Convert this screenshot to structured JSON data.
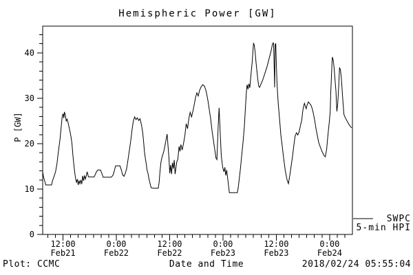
{
  "title": "Hemispheric Power [GW]",
  "y_axis_label": "P [GW]",
  "legend": {
    "line1": "SWPC",
    "line2": "5-min HPI"
  },
  "footer": {
    "left": "Plot: CCMC",
    "center": "Date and Time",
    "right": "2018/02/24 05:55:04"
  },
  "colors": {
    "background": "#ffffff",
    "foreground": "#000000",
    "line": "#000000"
  },
  "chart_data": {
    "type": "line",
    "title": "Hemispheric Power [GW]",
    "xlabel": "Date and Time",
    "ylabel": "P [GW]",
    "ylim": [
      0,
      45.9
    ],
    "y_major_ticks": [
      0,
      10,
      20,
      30,
      40
    ],
    "y_minor_step": 2,
    "grid": false,
    "x_hours_total": 69.7,
    "x_minor_step_hours": 1.7143,
    "x_major_ticks": [
      {
        "t": 4.57,
        "time": "12:00",
        "date": "Feb21"
      },
      {
        "t": 16.57,
        "time": "0:00",
        "date": "Feb22"
      },
      {
        "t": 28.57,
        "time": "12:00",
        "date": "Feb22"
      },
      {
        "t": 40.57,
        "time": "0:00",
        "date": "Feb23"
      },
      {
        "t": 52.57,
        "time": "12:00",
        "date": "Feb23"
      },
      {
        "t": 64.57,
        "time": "0:00",
        "date": "Feb24"
      }
    ],
    "legend_position": "right-outside-bottom",
    "series": [
      {
        "name": "SWPC 5-min HPI",
        "color": "#000000",
        "points": [
          [
            0,
            13.8
          ],
          [
            0.2,
            12.6
          ],
          [
            0.5,
            11.6
          ],
          [
            0.7,
            10.9
          ],
          [
            2.0,
            10.9
          ],
          [
            2.2,
            11.8
          ],
          [
            2.5,
            12.6
          ],
          [
            2.9,
            13.8
          ],
          [
            3.2,
            15.5
          ],
          [
            3.5,
            18.0
          ],
          [
            3.9,
            21.0
          ],
          [
            4.2,
            24.0
          ],
          [
            4.4,
            26.0
          ],
          [
            4.6,
            26.6
          ],
          [
            4.75,
            25.6
          ],
          [
            4.9,
            27.0
          ],
          [
            5.1,
            26.3
          ],
          [
            5.3,
            25.0
          ],
          [
            5.5,
            25.4
          ],
          [
            5.8,
            24.3
          ],
          [
            6.1,
            22.9
          ],
          [
            6.4,
            21.4
          ],
          [
            6.6,
            19.9
          ],
          [
            6.8,
            17.5
          ],
          [
            7.0,
            15.5
          ],
          [
            7.2,
            13.8
          ],
          [
            7.4,
            12.3
          ],
          [
            7.6,
            11.5
          ],
          [
            7.8,
            12.2
          ],
          [
            8.0,
            10.9
          ],
          [
            8.2,
            11.8
          ],
          [
            8.4,
            11.2
          ],
          [
            8.6,
            12.0
          ],
          [
            8.8,
            11.1
          ],
          [
            9.0,
            12.9
          ],
          [
            9.2,
            11.8
          ],
          [
            9.4,
            13.0
          ],
          [
            9.6,
            12.2
          ],
          [
            9.8,
            12.9
          ],
          [
            10.0,
            13.8
          ],
          [
            10.3,
            12.7
          ],
          [
            11.6,
            12.7
          ],
          [
            12.1,
            13.8
          ],
          [
            12.4,
            14.2
          ],
          [
            13.0,
            14.2
          ],
          [
            13.3,
            13.5
          ],
          [
            13.6,
            12.6
          ],
          [
            15.4,
            12.6
          ],
          [
            15.8,
            13.0
          ],
          [
            16.1,
            13.9
          ],
          [
            16.4,
            15.1
          ],
          [
            17.4,
            15.1
          ],
          [
            17.7,
            14.2
          ],
          [
            18.0,
            13.1
          ],
          [
            18.3,
            12.8
          ],
          [
            18.6,
            13.5
          ],
          [
            18.9,
            14.5
          ],
          [
            19.2,
            16.5
          ],
          [
            19.5,
            18.5
          ],
          [
            19.8,
            20.5
          ],
          [
            20.1,
            23.0
          ],
          [
            20.4,
            25.0
          ],
          [
            20.7,
            25.9
          ],
          [
            21.0,
            25.3
          ],
          [
            21.3,
            25.7
          ],
          [
            21.6,
            25.1
          ],
          [
            21.9,
            25.5
          ],
          [
            22.2,
            24.3
          ],
          [
            22.5,
            22.5
          ],
          [
            22.7,
            20.5
          ],
          [
            22.9,
            18.3
          ],
          [
            23.1,
            16.8
          ],
          [
            23.3,
            15.6
          ],
          [
            23.5,
            14.1
          ],
          [
            23.7,
            13.5
          ],
          [
            23.9,
            12.3
          ],
          [
            24.1,
            11.5
          ],
          [
            24.4,
            10.3
          ],
          [
            24.8,
            10.2
          ],
          [
            26.0,
            10.2
          ],
          [
            26.2,
            11.5
          ],
          [
            26.4,
            13.8
          ],
          [
            26.6,
            15.8
          ],
          [
            26.8,
            16.8
          ],
          [
            27.3,
            18.5
          ],
          [
            27.7,
            20.5
          ],
          [
            28.0,
            22.1
          ],
          [
            28.2,
            19.5
          ],
          [
            28.4,
            17.0
          ],
          [
            28.6,
            13.5
          ],
          [
            28.8,
            15.3
          ],
          [
            29.0,
            13.3
          ],
          [
            29.2,
            15.8
          ],
          [
            29.4,
            14.5
          ],
          [
            29.6,
            16.4
          ],
          [
            29.8,
            13.3
          ],
          [
            30.0,
            14.8
          ],
          [
            30.2,
            16.1
          ],
          [
            30.4,
            16.5
          ],
          [
            30.7,
            19.4
          ],
          [
            30.9,
            18.3
          ],
          [
            31.1,
            19.8
          ],
          [
            31.4,
            18.6
          ],
          [
            31.7,
            20.1
          ],
          [
            32.0,
            21.8
          ],
          [
            32.3,
            24.4
          ],
          [
            32.6,
            23.3
          ],
          [
            32.9,
            25.6
          ],
          [
            33.2,
            26.9
          ],
          [
            33.5,
            25.9
          ],
          [
            33.8,
            27.1
          ],
          [
            34.1,
            28.6
          ],
          [
            34.4,
            30.2
          ],
          [
            34.7,
            31.2
          ],
          [
            35.0,
            30.5
          ],
          [
            35.3,
            31.7
          ],
          [
            35.6,
            32.4
          ],
          [
            36.0,
            33.0
          ],
          [
            36.4,
            32.7
          ],
          [
            36.8,
            31.5
          ],
          [
            37.2,
            29.4
          ],
          [
            37.5,
            27.4
          ],
          [
            37.8,
            25.5
          ],
          [
            38.1,
            22.9
          ],
          [
            38.4,
            20.9
          ],
          [
            38.7,
            18.8
          ],
          [
            39.0,
            16.8
          ],
          [
            39.2,
            16.5
          ],
          [
            39.5,
            23.9
          ],
          [
            39.7,
            27.9
          ],
          [
            40.0,
            21.4
          ],
          [
            40.2,
            17.3
          ],
          [
            40.5,
            14.8
          ],
          [
            40.8,
            13.8
          ],
          [
            41.0,
            14.8
          ],
          [
            41.2,
            13.0
          ],
          [
            41.4,
            14.2
          ],
          [
            41.6,
            12.6
          ],
          [
            41.8,
            10.9
          ],
          [
            42.0,
            9.2
          ],
          [
            43.8,
            9.2
          ],
          [
            44.0,
            10.3
          ],
          [
            44.2,
            12.0
          ],
          [
            44.5,
            14.5
          ],
          [
            44.8,
            17.5
          ],
          [
            45.1,
            20.5
          ],
          [
            45.4,
            24.0
          ],
          [
            45.6,
            27.5
          ],
          [
            45.8,
            30.9
          ],
          [
            46.0,
            33.0
          ],
          [
            46.2,
            32.0
          ],
          [
            46.4,
            33.2
          ],
          [
            46.6,
            32.3
          ],
          [
            46.8,
            34.5
          ],
          [
            47.0,
            36.5
          ],
          [
            47.15,
            38.0
          ],
          [
            47.3,
            40.3
          ],
          [
            47.45,
            42.1
          ],
          [
            47.6,
            41.8
          ],
          [
            47.8,
            40.3
          ],
          [
            48.0,
            38.0
          ],
          [
            48.2,
            36.1
          ],
          [
            48.4,
            34.2
          ],
          [
            48.6,
            32.7
          ],
          [
            48.8,
            32.4
          ],
          [
            49.5,
            34.0
          ],
          [
            50.5,
            37.0
          ],
          [
            51.4,
            40.5
          ],
          [
            51.75,
            42.1
          ],
          [
            51.95,
            42.2
          ],
          [
            52.1,
            36.5
          ],
          [
            52.2,
            32.4
          ],
          [
            52.3,
            41.8
          ],
          [
            52.45,
            42.1
          ],
          [
            52.6,
            37.0
          ],
          [
            52.75,
            32.7
          ],
          [
            53.0,
            28.9
          ],
          [
            53.3,
            25.5
          ],
          [
            53.6,
            21.8
          ],
          [
            53.9,
            19.5
          ],
          [
            54.2,
            17.0
          ],
          [
            54.6,
            14.0
          ],
          [
            55.0,
            12.0
          ],
          [
            55.3,
            11.2
          ],
          [
            55.6,
            13.0
          ],
          [
            55.9,
            15.0
          ],
          [
            56.2,
            17.0
          ],
          [
            56.5,
            19.5
          ],
          [
            56.8,
            21.7
          ],
          [
            57.1,
            22.4
          ],
          [
            57.4,
            21.9
          ],
          [
            57.7,
            22.6
          ],
          [
            58.0,
            24.0
          ],
          [
            58.3,
            25.2
          ],
          [
            58.5,
            27.0
          ],
          [
            58.7,
            28.2
          ],
          [
            58.9,
            28.9
          ],
          [
            59.1,
            28.2
          ],
          [
            59.3,
            27.7
          ],
          [
            59.5,
            28.5
          ],
          [
            59.8,
            29.2
          ],
          [
            60.0,
            28.9
          ],
          [
            60.3,
            28.6
          ],
          [
            60.6,
            27.9
          ],
          [
            60.9,
            26.7
          ],
          [
            61.2,
            25.2
          ],
          [
            61.5,
            23.3
          ],
          [
            61.8,
            21.8
          ],
          [
            62.1,
            20.3
          ],
          [
            62.5,
            19.2
          ],
          [
            62.9,
            18.2
          ],
          [
            63.3,
            17.4
          ],
          [
            63.6,
            17.1
          ],
          [
            63.9,
            18.8
          ],
          [
            64.1,
            20.9
          ],
          [
            64.3,
            22.9
          ],
          [
            64.5,
            24.8
          ],
          [
            64.7,
            27.0
          ],
          [
            64.8,
            30.9
          ],
          [
            64.9,
            33.0
          ],
          [
            65.0,
            35.5
          ],
          [
            65.1,
            37.6
          ],
          [
            65.2,
            39.1
          ],
          [
            65.4,
            38.3
          ],
          [
            65.6,
            36.5
          ],
          [
            65.8,
            33.9
          ],
          [
            66.0,
            31.5
          ],
          [
            66.1,
            28.9
          ],
          [
            66.2,
            27.1
          ],
          [
            66.4,
            28.9
          ],
          [
            66.6,
            32.4
          ],
          [
            66.7,
            34.5
          ],
          [
            66.8,
            36.8
          ],
          [
            67.0,
            36.2
          ],
          [
            67.2,
            34.5
          ],
          [
            67.4,
            31.5
          ],
          [
            67.6,
            28.9
          ],
          [
            67.8,
            26.4
          ],
          [
            68.2,
            25.5
          ],
          [
            68.6,
            24.8
          ],
          [
            69.0,
            24.1
          ],
          [
            69.5,
            23.5
          ]
        ]
      }
    ]
  }
}
